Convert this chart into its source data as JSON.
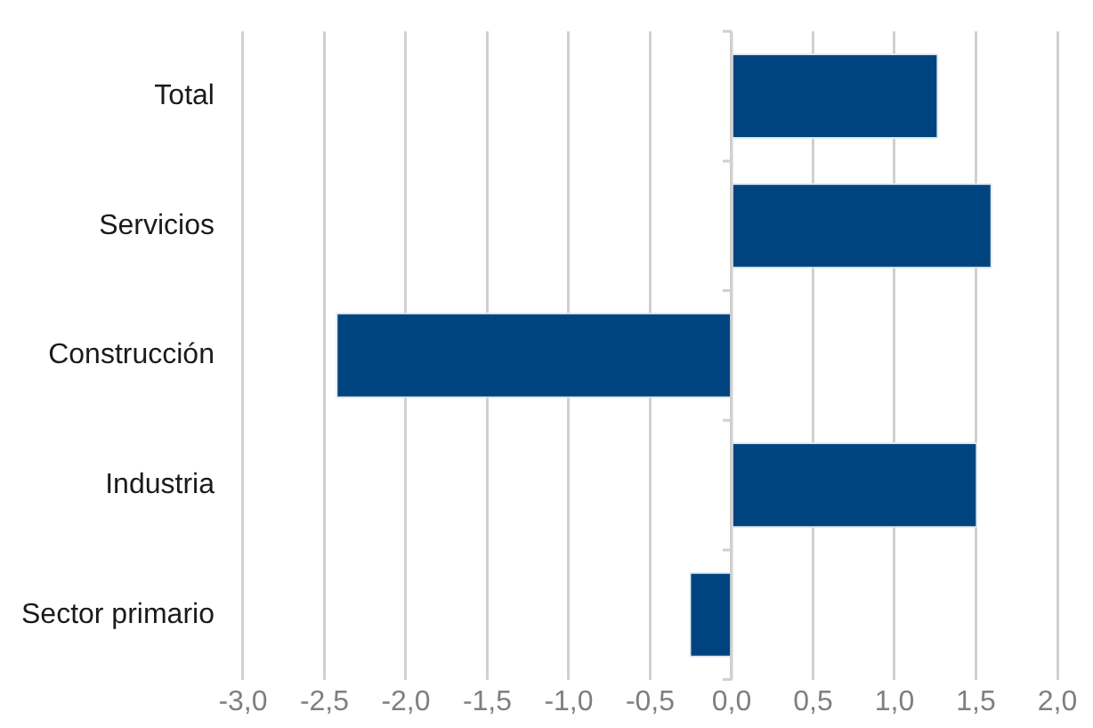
{
  "chart_data": {
    "type": "bar",
    "orientation": "horizontal",
    "categories": [
      "Total",
      "Servicios",
      "Construcción",
      "Industria",
      "Sector primario"
    ],
    "values": [
      1.27,
      1.6,
      -2.43,
      1.51,
      -0.26
    ],
    "color": "#00447f",
    "xlim": [
      -3,
      2
    ],
    "xticks": [
      {
        "value": -3,
        "label": "-3,0"
      },
      {
        "value": -2.5,
        "label": "-2,5"
      },
      {
        "value": -2,
        "label": "-2,0"
      },
      {
        "value": -1.5,
        "label": "-1,5"
      },
      {
        "value": -1,
        "label": "-1,0"
      },
      {
        "value": -0.5,
        "label": "-0,5"
      },
      {
        "value": 0,
        "label": "0,0"
      },
      {
        "value": 0.5,
        "label": "0,5"
      },
      {
        "value": 1,
        "label": "1,0"
      },
      {
        "value": 1.5,
        "label": "1,5"
      },
      {
        "value": 2,
        "label": "2,0"
      }
    ],
    "grid": "x",
    "legend": false
  }
}
